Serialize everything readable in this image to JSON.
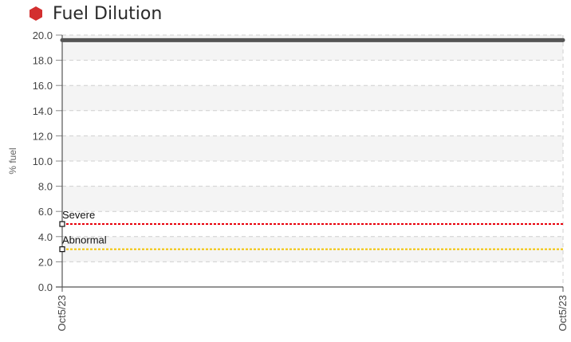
{
  "header": {
    "title": "Fuel Dilution",
    "status_color": "#d32f2f"
  },
  "chart_data": {
    "type": "line",
    "title": "Fuel Dilution",
    "ylabel": "% fuel",
    "xlabel": "",
    "ylim": [
      0,
      20
    ],
    "yticks": [
      "0.0",
      "2.0",
      "4.0",
      "6.0",
      "8.0",
      "10.0",
      "12.0",
      "14.0",
      "16.0",
      "18.0",
      "20.0"
    ],
    "x": [
      "Oct5/23",
      "Oct5/23"
    ],
    "grid": true,
    "series": [
      {
        "values": [
          19.6,
          19.6
        ],
        "color": "#555555"
      }
    ],
    "thresholds": [
      {
        "name": "Severe",
        "value": 5.0,
        "color": "#e8000b"
      },
      {
        "name": "Abnormal",
        "value": 3.0,
        "color": "#f2c200"
      }
    ]
  }
}
